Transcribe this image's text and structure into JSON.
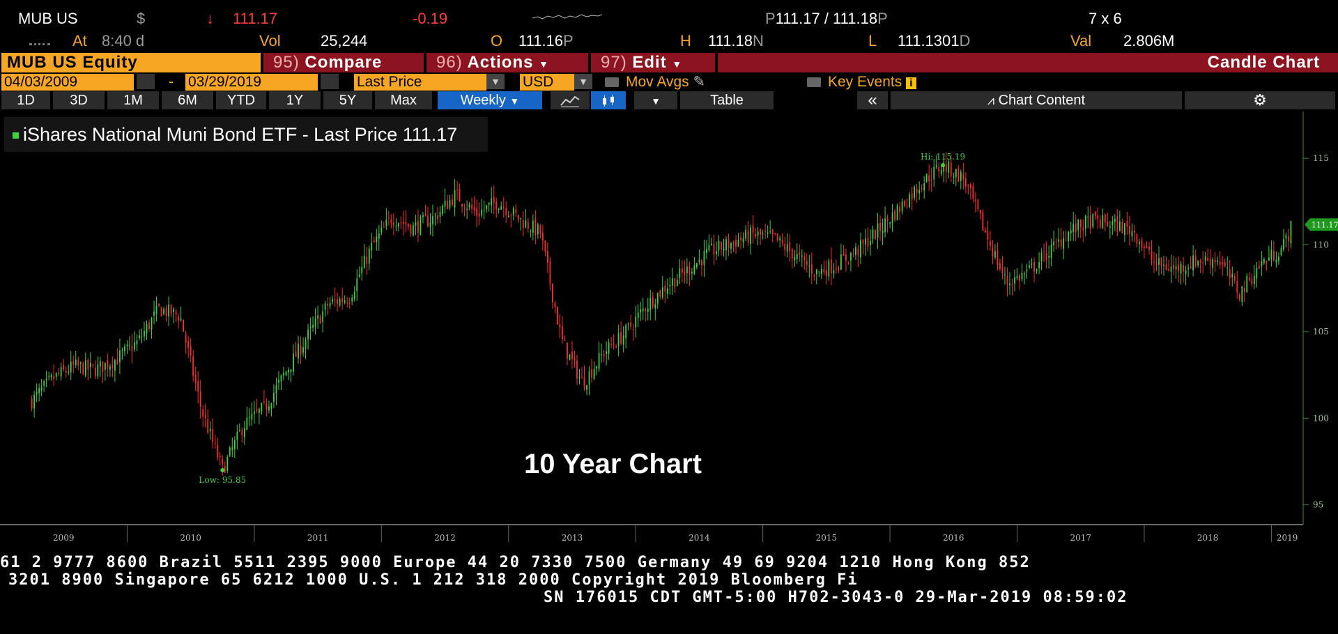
{
  "quote": {
    "ticker": "MUB US",
    "currency": "$",
    "arrow": "↓",
    "last": "111.17",
    "change": "-0.19",
    "bid_ask_p1": "P",
    "bid_ask": "111.17 / 111.18",
    "bid_ask_p2": "P",
    "size": "7 x 6",
    "at_label": "At",
    "at_time": "8:40 d",
    "vol_label": "Vol",
    "vol": "25,244",
    "open_label": "O",
    "open": "111.16",
    "open_suffix": "P",
    "high_label": "H",
    "high": "111.18",
    "high_suffix": "N",
    "low_label": "L",
    "low": "111.1301",
    "low_suffix": "D",
    "val_label": "Val",
    "val": "2.806M"
  },
  "toolbar": {
    "security": "MUB US Equity",
    "compare_num": "95)",
    "compare": "Compare",
    "actions_num": "96)",
    "actions": "Actions",
    "edit_num": "97)",
    "edit": "Edit",
    "chart_type": "Candle Chart",
    "start_date": "04/03/2009",
    "date_sep": "-",
    "end_date": "03/29/2019",
    "field": "Last Price",
    "currency": "USD",
    "mov_avgs": "Mov Avgs",
    "key_events": "Key Events",
    "periods": [
      "1D",
      "3D",
      "1M",
      "6M",
      "YTD",
      "1Y",
      "5Y",
      "Max"
    ],
    "frequency": "Weekly",
    "table": "Table",
    "collapse": "«",
    "chart_content": "Chart Content"
  },
  "legend": {
    "label": "iShares National Muni Bond ETF - Last Price",
    "value": "111.17"
  },
  "annotation": "10 Year Chart",
  "colors": {
    "up": "#3fd13f",
    "down": "#ff2b2b",
    "accent": "#f6a623",
    "tab_bg": "#8b1420",
    "selected": "#1665c7"
  },
  "chart_data": {
    "type": "candlestick",
    "title": "iShares National Muni Bond ETF - Last Price",
    "ylim": [
      93.9,
      117.7
    ],
    "yticks": [
      95,
      100,
      105,
      110,
      115
    ],
    "x_ticks": [
      "2009",
      "2010",
      "2011",
      "2012",
      "2013",
      "2014",
      "2015",
      "2016",
      "2017",
      "2018",
      "2019"
    ],
    "xlim": [
      "2009-01",
      "2019-04"
    ],
    "high_label": "Hi: 115.19",
    "low_label": "Low: 95.85",
    "last_price_tag": "111.17",
    "series": [
      {
        "name": "Last Price",
        "dates": [
          "2009-04",
          "2009-06",
          "2009-08",
          "2009-10",
          "2009-12",
          "2010-02",
          "2010-04",
          "2010-06",
          "2010-08",
          "2010-10",
          "2010-12",
          "2011-02",
          "2011-04",
          "2011-06",
          "2011-08",
          "2011-10",
          "2011-12",
          "2012-02",
          "2012-04",
          "2012-06",
          "2012-08",
          "2012-10",
          "2012-12",
          "2013-02",
          "2013-04",
          "2013-06",
          "2013-08",
          "2013-10",
          "2013-12",
          "2014-02",
          "2014-04",
          "2014-06",
          "2014-08",
          "2014-10",
          "2014-12",
          "2015-02",
          "2015-04",
          "2015-06",
          "2015-08",
          "2015-10",
          "2015-12",
          "2016-02",
          "2016-04",
          "2016-06",
          "2016-08",
          "2016-10",
          "2016-12",
          "2017-02",
          "2017-04",
          "2017-06",
          "2017-08",
          "2017-10",
          "2017-12",
          "2018-02",
          "2018-04",
          "2018-06",
          "2018-08",
          "2018-10",
          "2018-12",
          "2019-02",
          "2019-03"
        ],
        "values": [
          101.0,
          102.3,
          103.0,
          102.8,
          103.4,
          104.4,
          106.3,
          105.9,
          100.5,
          97.0,
          99.6,
          100.6,
          102.7,
          104.7,
          106.6,
          107.0,
          109.8,
          111.6,
          111.0,
          111.6,
          112.9,
          111.8,
          112.5,
          111.5,
          110.7,
          104.5,
          102.0,
          103.8,
          104.9,
          106.5,
          107.7,
          108.6,
          109.6,
          110.1,
          110.6,
          110.4,
          109.4,
          108.4,
          108.9,
          109.7,
          110.9,
          112.2,
          113.6,
          114.6,
          113.8,
          110.7,
          107.8,
          108.4,
          109.6,
          110.8,
          111.4,
          111.2,
          110.8,
          108.9,
          108.6,
          109.1,
          109.2,
          107.2,
          108.9,
          109.8,
          111.17
        ]
      }
    ]
  }
}
